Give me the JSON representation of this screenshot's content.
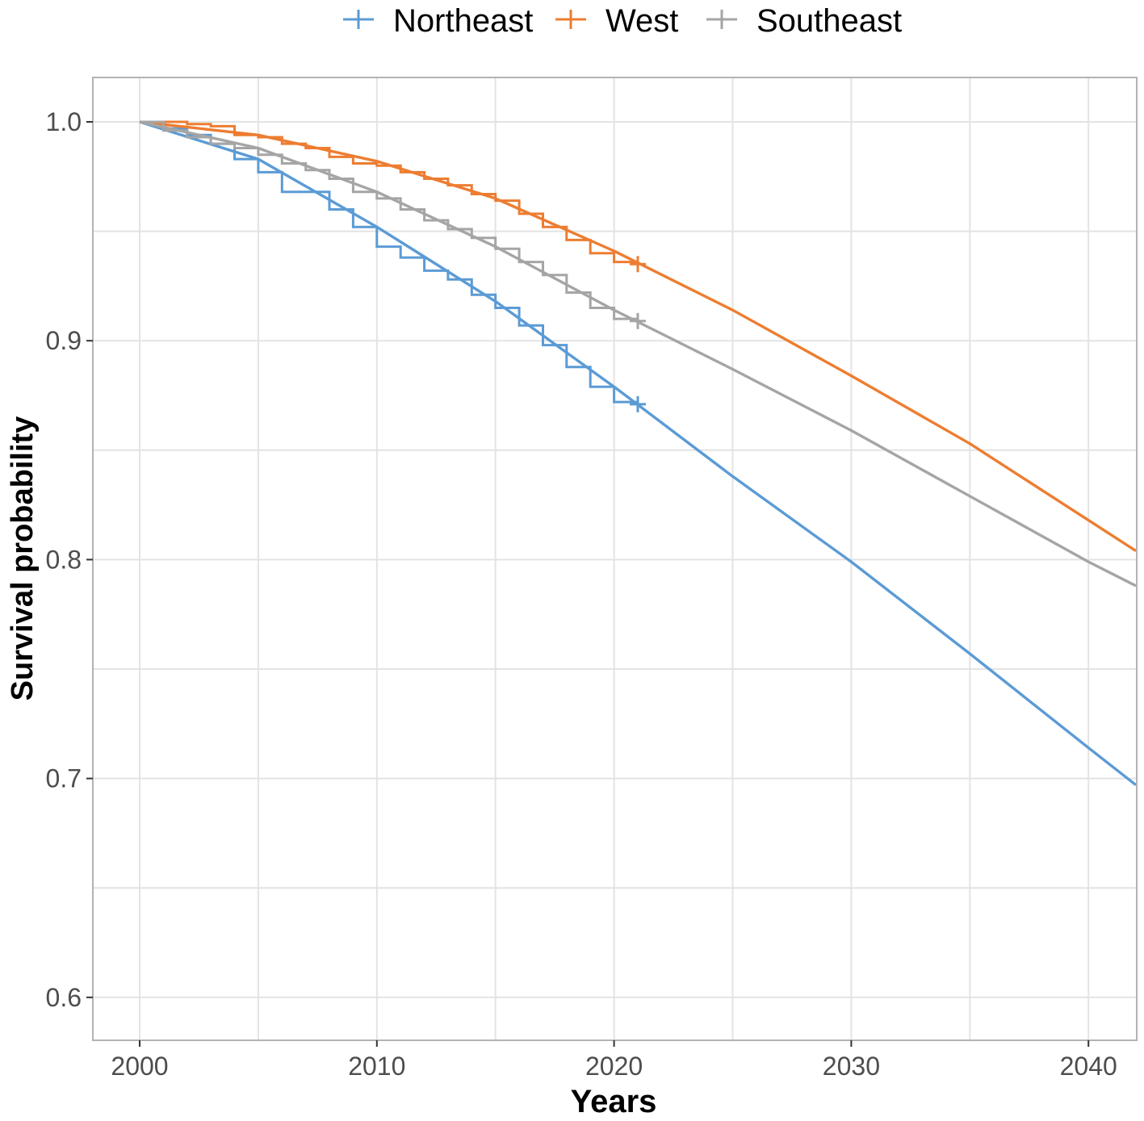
{
  "chart_data": {
    "type": "line",
    "title": "",
    "xlabel": "Years",
    "ylabel": "Survival probability",
    "xlim": [
      1998,
      2042
    ],
    "ylim": [
      0.58,
      1.02
    ],
    "x_ticks": [
      2000,
      2010,
      2020,
      2030,
      2040
    ],
    "x_tick_labels": [
      "2000",
      "2010",
      "2020",
      "2030",
      "2040"
    ],
    "y_ticks": [
      0.6,
      0.7,
      0.8,
      0.9,
      1.0
    ],
    "y_tick_labels": [
      "0.6",
      "0.7",
      "0.8",
      "0.9",
      "1.0"
    ],
    "grid": true,
    "legend_position": "top",
    "series": [
      {
        "name": "Northeast",
        "color": "#5b9bd5",
        "observed_steps": {
          "x": [
            2000,
            2001,
            2002,
            2003,
            2004,
            2005,
            2006,
            2007,
            2008,
            2009,
            2010,
            2011,
            2012,
            2013,
            2014,
            2015,
            2016,
            2017,
            2018,
            2019,
            2020,
            2021
          ],
          "y": [
            1.0,
            0.997,
            0.994,
            0.99,
            0.983,
            0.977,
            0.968,
            0.968,
            0.96,
            0.952,
            0.943,
            0.938,
            0.932,
            0.928,
            0.921,
            0.915,
            0.907,
            0.898,
            0.888,
            0.879,
            0.872,
            0.871
          ]
        },
        "censor_mark": {
          "x": 2021,
          "y": 0.871
        },
        "fitted_curve": {
          "x": [
            2000,
            2005,
            2010,
            2015,
            2020,
            2025,
            2030,
            2035,
            2040,
            2042
          ],
          "y": [
            1.0,
            0.983,
            0.952,
            0.918,
            0.879,
            0.838,
            0.799,
            0.757,
            0.714,
            0.697
          ]
        }
      },
      {
        "name": "West",
        "color": "#ed7d31",
        "observed_steps": {
          "x": [
            2000,
            2001,
            2002,
            2003,
            2004,
            2005,
            2006,
            2007,
            2008,
            2009,
            2010,
            2011,
            2012,
            2013,
            2014,
            2015,
            2016,
            2017,
            2018,
            2019,
            2020,
            2021
          ],
          "y": [
            1.0,
            1.0,
            0.999,
            0.998,
            0.994,
            0.993,
            0.99,
            0.988,
            0.984,
            0.981,
            0.98,
            0.977,
            0.974,
            0.971,
            0.967,
            0.964,
            0.958,
            0.952,
            0.946,
            0.94,
            0.936,
            0.935
          ]
        },
        "censor_mark": {
          "x": 2021,
          "y": 0.935
        },
        "fitted_curve": {
          "x": [
            2000,
            2005,
            2010,
            2015,
            2020,
            2025,
            2030,
            2035,
            2040,
            2042
          ],
          "y": [
            1.0,
            0.994,
            0.982,
            0.965,
            0.941,
            0.914,
            0.884,
            0.853,
            0.818,
            0.804
          ]
        }
      },
      {
        "name": "Southeast",
        "color": "#a5a5a5",
        "observed_steps": {
          "x": [
            2000,
            2001,
            2002,
            2003,
            2004,
            2005,
            2006,
            2007,
            2008,
            2009,
            2010,
            2011,
            2012,
            2013,
            2014,
            2015,
            2016,
            2017,
            2018,
            2019,
            2020,
            2021
          ],
          "y": [
            1.0,
            0.996,
            0.993,
            0.99,
            0.988,
            0.985,
            0.981,
            0.978,
            0.974,
            0.968,
            0.965,
            0.96,
            0.955,
            0.951,
            0.947,
            0.942,
            0.936,
            0.93,
            0.922,
            0.915,
            0.91,
            0.909
          ]
        },
        "censor_mark": {
          "x": 2021,
          "y": 0.909
        },
        "fitted_curve": {
          "x": [
            2000,
            2005,
            2010,
            2015,
            2020,
            2025,
            2030,
            2035,
            2040,
            2042
          ],
          "y": [
            1.0,
            0.988,
            0.968,
            0.943,
            0.914,
            0.887,
            0.859,
            0.829,
            0.799,
            0.788
          ]
        }
      }
    ]
  }
}
